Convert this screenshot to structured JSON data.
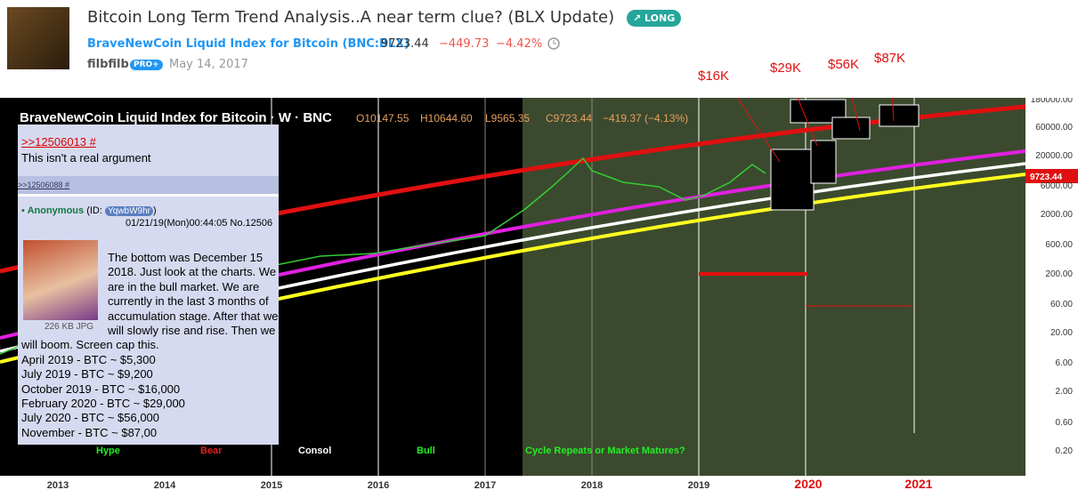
{
  "header": {
    "title": "Bitcoin Long Term Trend Analysis..A near term clue? (BLX Update)",
    "badge": "LONG",
    "symbol_name": "BraveNewCoin Liquid Index for Bitcoin",
    "symbol": "(BNC:BLX)",
    "price": "9723.44",
    "change": "−449.73",
    "change_pct": "−4.42%",
    "author": "filbfilb",
    "author_badge": "PRO+",
    "date": "May 14, 2017"
  },
  "chart": {
    "legend_title": "BraveNewCoin Liquid Index for Bitcoin · W · BNC",
    "ohlc": [
      "O10147.55",
      "H10644.60",
      "L9565.35",
      "C9723.44",
      "−419.37 (−4.13%)"
    ],
    "y_axis": [
      "180000.00",
      "60000.00",
      "20000.00",
      "6000.00",
      "2000.00",
      "600.00",
      "200.00",
      "60.00",
      "20.00",
      "6.00",
      "2.00",
      "0.60",
      "0.20"
    ],
    "last_price": "9723.44",
    "x_axis": [
      "2013",
      "2014",
      "2015",
      "2016",
      "2017",
      "2018",
      "2019",
      "2020",
      "2021"
    ],
    "annotations": [
      "$16K",
      "$29K",
      "$56K",
      "$87K"
    ],
    "phases": [
      "Hype",
      "Bear",
      "Consol",
      "Bull",
      "Cycle Repeats or Market Matures?"
    ]
  },
  "post": {
    "quote_link": ">>12506013 #",
    "quote_text": "This isn't a real argument",
    "reply_link": ">>12506088 #",
    "poster": "Anonymous",
    "id_label": "(ID:",
    "id": "YqwbW9hr",
    "id_close": ")",
    "datetime": "01/21/19(Mon)00:44:05 No.12506",
    "file_info": "226 KB JPG",
    "body": [
      "The bottom was December 15",
      "2018. Just look at the charts. We",
      "are in the bull market. We are",
      "currently in the last 3 months of",
      "accumulation stage. After that we",
      "will slowly rise and rise. Then we",
      "will boom. Screen cap this.",
      "April 2019 - BTC ~ $5,300",
      "July 2019 - BTC ~ $9,200",
      "October 2019 - BTC ~ $16,000",
      "February 2020 - BTC ~ $29,000",
      "July 2020 - BTC ~ $56,000",
      "November - BTC ~ $87,00"
    ]
  }
}
